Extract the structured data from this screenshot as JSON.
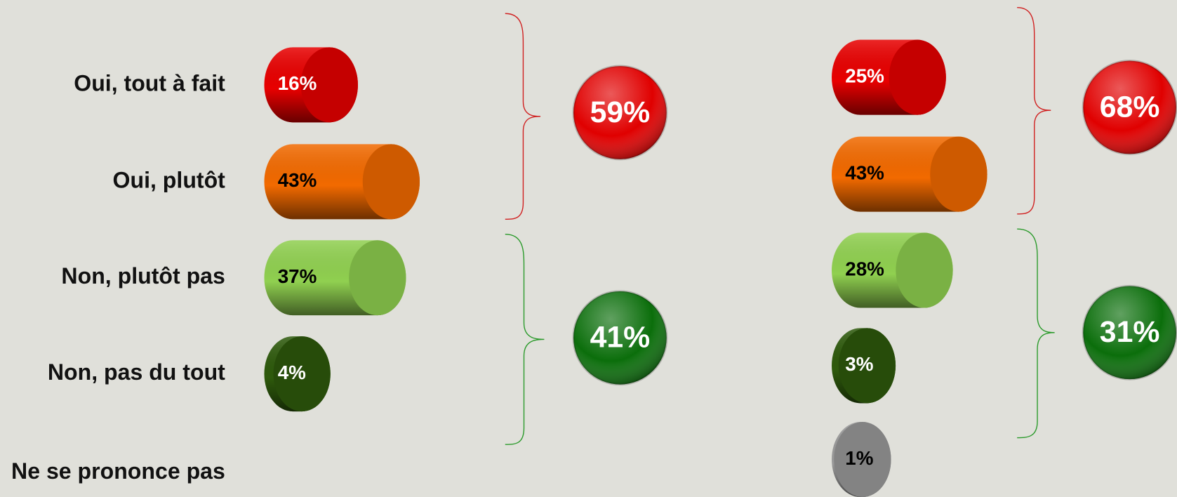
{
  "chart_data": {
    "type": "bar",
    "categories": [
      "Oui, tout à fait",
      "Oui, plutôt",
      "Non, plutôt pas",
      "Non, pas du tout",
      "Ne se prononce pas"
    ],
    "colors": [
      "#e80000",
      "#f26a00",
      "#90d050",
      "#2e5a0c",
      "#9a9a9a"
    ],
    "total_colors": [
      "#e00000",
      "#0b6e0b"
    ],
    "series": [
      {
        "values": [
          16,
          43,
          37,
          4,
          null
        ],
        "value_labels": [
          "16%",
          "43%",
          "37%",
          "4%",
          null
        ],
        "label_colors": [
          "#ffffff",
          "#000000",
          "#000000",
          "#ffffff",
          "#000000"
        ],
        "totals": [
          59,
          41
        ],
        "total_labels": [
          "59%",
          "41%"
        ]
      },
      {
        "values": [
          25,
          43,
          28,
          3,
          1
        ],
        "value_labels": [
          "25%",
          "43%",
          "28%",
          "3%",
          "1%"
        ],
        "label_colors": [
          "#ffffff",
          "#000000",
          "#000000",
          "#ffffff",
          "#000000"
        ],
        "totals": [
          68,
          31
        ],
        "total_labels": [
          "68%",
          "31%"
        ]
      }
    ]
  }
}
